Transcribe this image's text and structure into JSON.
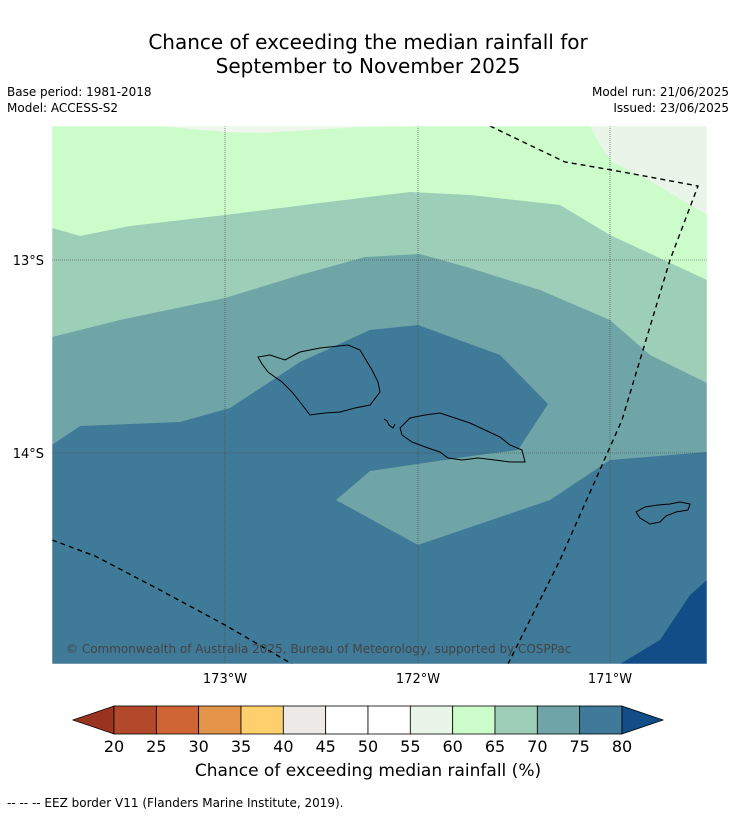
{
  "title": {
    "line1": "Chance of exceeding the median rainfall for",
    "line2": "September to November 2025"
  },
  "meta": {
    "base_period": "Base period: 1981-2018",
    "model": "Model: ACCESS-S2",
    "model_run": "Model run: 21/06/2025",
    "issued": "Issued: 23/06/2025"
  },
  "map": {
    "lat_labels": [
      "13°S",
      "14°S"
    ],
    "lon_labels": [
      "173°W",
      "172°W",
      "171°W"
    ],
    "copyright": "© Commonwealth of Australia 2025, Bureau of Meteorology, supported by COSPPac",
    "colors": {
      "60-65": "#ccfcca",
      "65-70": "#9dcfb8",
      "70-75": "#6fa5a6",
      "75-80": "#407a99",
      "80+": "#124d87",
      "55-60": "#e8f5e8"
    }
  },
  "colorbar": {
    "ticks": [
      "20",
      "25",
      "30",
      "35",
      "40",
      "45",
      "50",
      "55",
      "60",
      "65",
      "70",
      "75",
      "80"
    ],
    "colors": [
      "#b2492a",
      "#cf6535",
      "#e4954a",
      "#fecf6d",
      "#ece9e6",
      "#ffffff",
      "#ffffff",
      "#e8f5e8",
      "#ccfcca",
      "#9dcfb8",
      "#6fa5a6",
      "#407a99"
    ],
    "under_color": "#98341f",
    "over_color": "#124d87",
    "title": "Chance of exceeding median rainfall (%)"
  },
  "footnote": "--  --  -- EEZ border V11 (Flanders Marine Institute, 2019)."
}
